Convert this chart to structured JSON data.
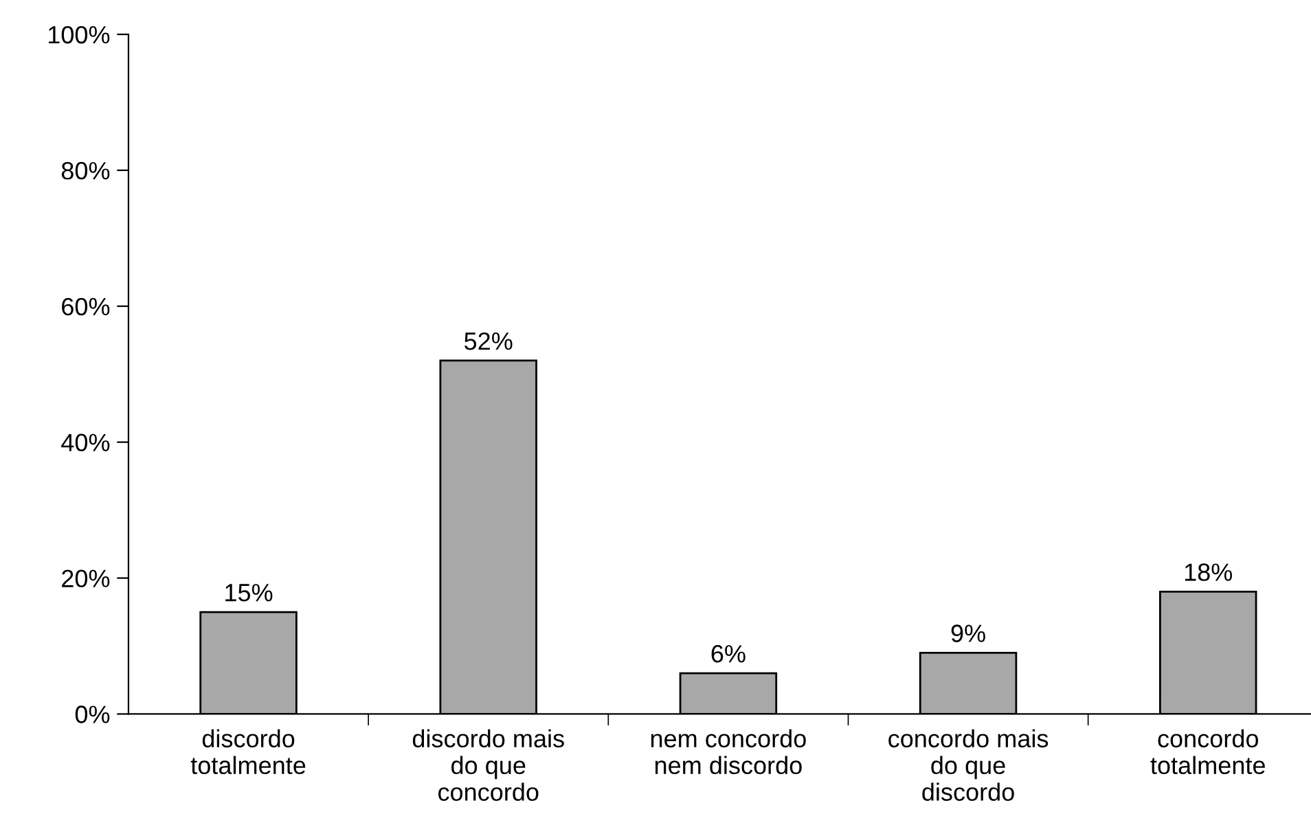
{
  "chart_data": {
    "type": "bar",
    "categories": [
      "discordo\ntotalmente",
      "discordo mais\ndo que\nconcordo",
      "nem concordo\nnem discordo",
      "concordo mais\ndo que\ndiscordo",
      "concordo\ntotalmente"
    ],
    "values": [
      15,
      52,
      6,
      9,
      18
    ],
    "value_labels": [
      "15%",
      "52%",
      "6%",
      "9%",
      "18%"
    ],
    "color": "#a8a8a8",
    "ylim": [
      0,
      100
    ],
    "yticks": [
      {
        "value": 0,
        "label": "0%"
      },
      {
        "value": 20,
        "label": "20%"
      },
      {
        "value": 40,
        "label": "40%"
      },
      {
        "value": 60,
        "label": "60%"
      },
      {
        "value": 80,
        "label": "80%"
      },
      {
        "value": 100,
        "label": "100%"
      }
    ],
    "grid": false,
    "legend": false
  }
}
